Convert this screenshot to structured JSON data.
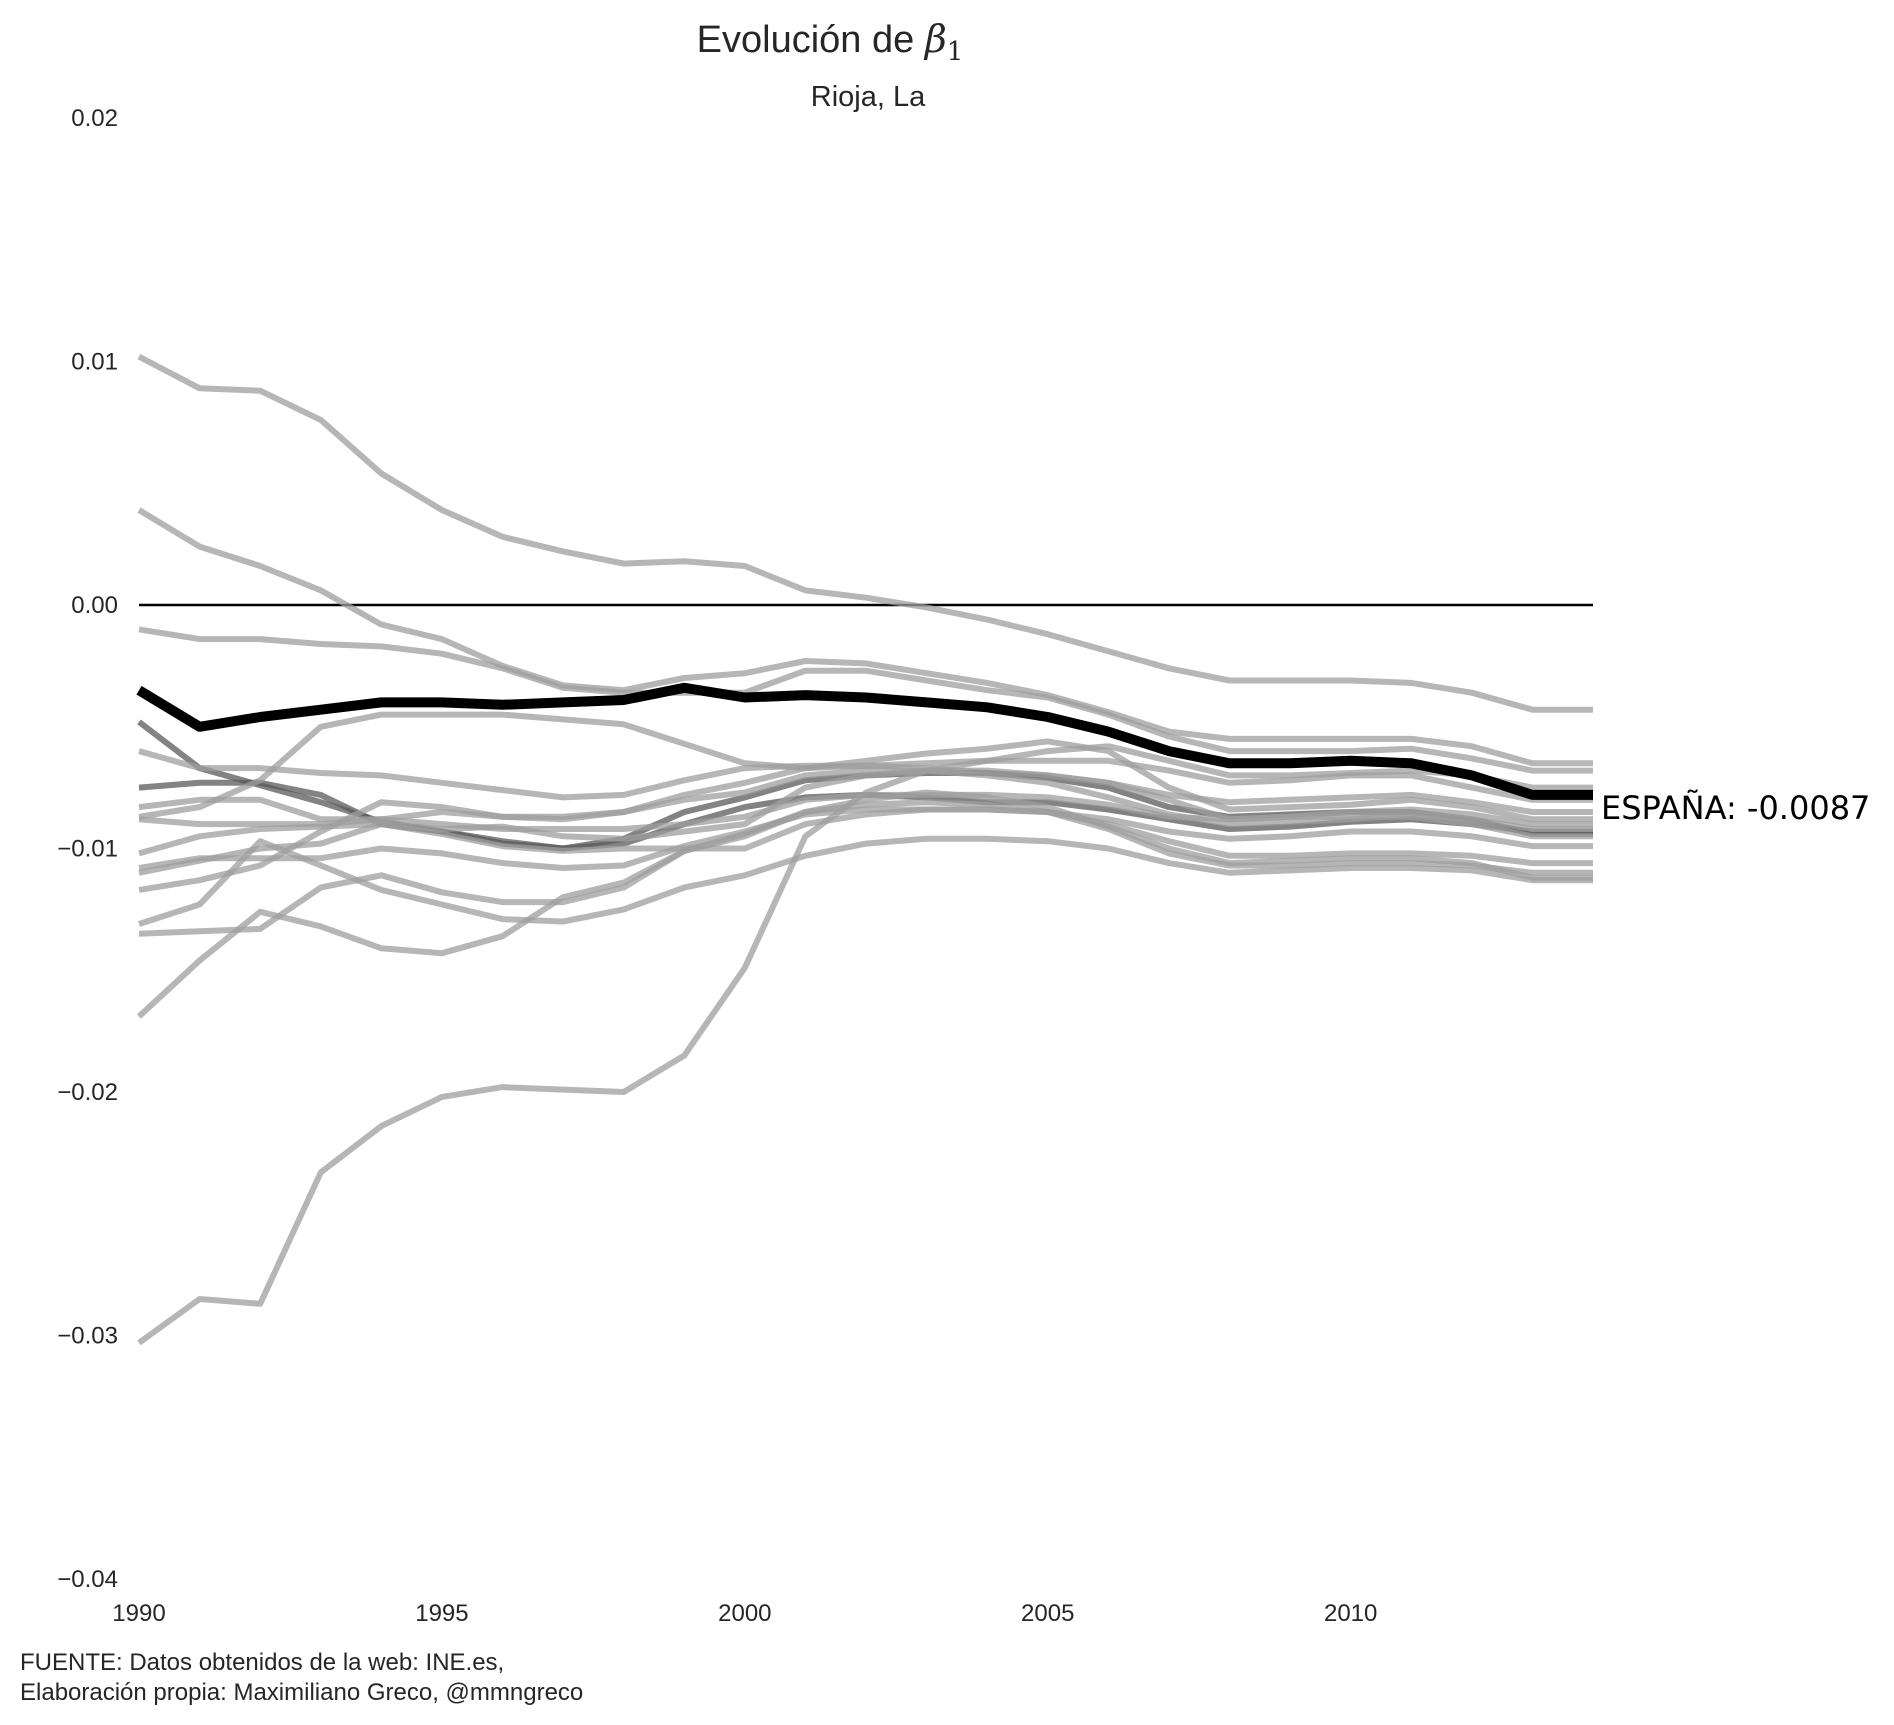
{
  "chart_data": {
    "type": "line",
    "title_prefix": "Evolución de ",
    "title_symbol": "β",
    "title_subscript": "1",
    "subtitle": "Rioja, La",
    "x_ticks": [
      1990,
      1995,
      2000,
      2005,
      2010
    ],
    "y_ticks": [
      "0.02",
      "0.01",
      "0.00",
      "−0.01",
      "−0.02",
      "−0.03",
      "−0.04"
    ],
    "y_tick_values": [
      0.02,
      0.01,
      0.0,
      -0.01,
      -0.02,
      -0.03,
      -0.04
    ],
    "xlim": [
      1990,
      2014
    ],
    "ylim": [
      -0.04,
      0.02
    ],
    "x": [
      1990,
      1991,
      1992,
      1993,
      1994,
      1995,
      1996,
      1997,
      1998,
      1999,
      2000,
      2001,
      2002,
      2003,
      2004,
      2005,
      2006,
      2007,
      2008,
      2009,
      2010,
      2011,
      2012,
      2013,
      2014
    ],
    "zero_line": 0.0,
    "grid": false,
    "colors": {
      "background_series": "#9e9e9e",
      "highlight": "#000000",
      "dark_series": "#5a5a5a"
    },
    "highlight": {
      "values": [
        -0.0035,
        -0.005,
        -0.0046,
        -0.0043,
        -0.004,
        -0.004,
        -0.0041,
        -0.004,
        -0.0039,
        -0.0034,
        -0.0038,
        -0.0037,
        -0.0038,
        -0.004,
        -0.0042,
        -0.0046,
        -0.0052,
        -0.006,
        -0.0065,
        -0.0065,
        -0.0064,
        -0.0065,
        -0.007,
        -0.0078,
        -0.0078
      ],
      "annotation": "ESPAÑA: -0.0087"
    },
    "series": [
      {
        "values": [
          0.0102,
          0.0089,
          0.0088,
          0.0076,
          0.0054,
          0.0039,
          0.0028,
          0.0022,
          0.0017,
          0.0018,
          0.0016,
          0.0006,
          0.0003,
          -0.0001,
          -0.0006,
          -0.0012,
          -0.0019,
          -0.0026,
          -0.0031,
          -0.0031,
          -0.0031,
          -0.0032,
          -0.0036,
          -0.0043,
          -0.0043
        ]
      },
      {
        "values": [
          0.0039,
          0.0024,
          0.0016,
          0.0006,
          -0.0008,
          -0.0014,
          -0.0025,
          -0.0033,
          -0.0035,
          -0.003,
          -0.0028,
          -0.0023,
          -0.0024,
          -0.0028,
          -0.0032,
          -0.0037,
          -0.0044,
          -0.0052,
          -0.0055,
          -0.0055,
          -0.0055,
          -0.0055,
          -0.0058,
          -0.0065,
          -0.0065
        ]
      },
      {
        "values": [
          -0.001,
          -0.0014,
          -0.0014,
          -0.0016,
          -0.0017,
          -0.002,
          -0.0026,
          -0.0034,
          -0.0036,
          -0.0036,
          -0.0036,
          -0.0027,
          -0.0027,
          -0.0031,
          -0.0035,
          -0.0038,
          -0.0045,
          -0.0054,
          -0.006,
          -0.006,
          -0.006,
          -0.0059,
          -0.0063,
          -0.0068,
          -0.0068
        ]
      },
      {
        "values": [
          -0.0048,
          -0.0067,
          -0.0074,
          -0.0081,
          -0.0089,
          -0.0093,
          -0.0097,
          -0.01,
          -0.0098,
          -0.009,
          -0.0083,
          -0.0079,
          -0.0078,
          -0.0079,
          -0.0081,
          -0.0081,
          -0.0084,
          -0.0088,
          -0.0092,
          -0.0091,
          -0.0089,
          -0.0088,
          -0.009,
          -0.0093,
          -0.0093
        ]
      },
      {
        "values": [
          -0.006,
          -0.0067,
          -0.0067,
          -0.0069,
          -0.007,
          -0.0073,
          -0.0076,
          -0.0079,
          -0.0078,
          -0.0072,
          -0.0067,
          -0.0066,
          -0.0066,
          -0.0067,
          -0.0069,
          -0.007,
          -0.0073,
          -0.0078,
          -0.0081,
          -0.008,
          -0.0079,
          -0.0078,
          -0.0081,
          -0.0085,
          -0.0085
        ]
      },
      {
        "values": [
          -0.0075,
          -0.0073,
          -0.0073,
          -0.0078,
          -0.009,
          -0.0093,
          -0.0098,
          -0.01,
          -0.0096,
          -0.0085,
          -0.0079,
          -0.0072,
          -0.007,
          -0.0069,
          -0.0069,
          -0.0071,
          -0.0075,
          -0.0083,
          -0.0087,
          -0.0086,
          -0.0085,
          -0.0085,
          -0.0088,
          -0.0094,
          -0.0094
        ]
      },
      {
        "values": [
          -0.0083,
          -0.008,
          -0.008,
          -0.0088,
          -0.0088,
          -0.0085,
          -0.0087,
          -0.0088,
          -0.0085,
          -0.008,
          -0.0077,
          -0.007,
          -0.0068,
          -0.0068,
          -0.007,
          -0.0073,
          -0.0079,
          -0.0086,
          -0.009,
          -0.0089,
          -0.0088,
          -0.0086,
          -0.0088,
          -0.0092,
          -0.0092
        ]
      },
      {
        "values": [
          -0.0088,
          -0.009,
          -0.009,
          -0.009,
          -0.0088,
          -0.009,
          -0.0092,
          -0.0092,
          -0.0092,
          -0.009,
          -0.0087,
          -0.008,
          -0.0078,
          -0.0078,
          -0.0078,
          -0.0079,
          -0.0082,
          -0.0087,
          -0.0088,
          -0.0087,
          -0.0085,
          -0.0084,
          -0.0086,
          -0.009,
          -0.009
        ]
      },
      {
        "values": [
          -0.0087,
          -0.0083,
          -0.0072,
          -0.005,
          -0.0045,
          -0.0045,
          -0.0045,
          -0.0047,
          -0.0049,
          -0.0057,
          -0.0065,
          -0.0067,
          -0.0066,
          -0.0065,
          -0.0064,
          -0.0064,
          -0.0064,
          -0.0068,
          -0.0073,
          -0.0072,
          -0.007,
          -0.007,
          -0.0075,
          -0.008,
          -0.008
        ]
      },
      {
        "values": [
          -0.0102,
          -0.0095,
          -0.0092,
          -0.0091,
          -0.009,
          -0.0092,
          -0.0091,
          -0.0095,
          -0.0096,
          -0.0093,
          -0.009,
          -0.0075,
          -0.007,
          -0.0068,
          -0.0068,
          -0.007,
          -0.0073,
          -0.008,
          -0.0088,
          -0.0087,
          -0.0087,
          -0.0087,
          -0.009,
          -0.0095,
          -0.0095
        ]
      },
      {
        "values": [
          -0.0108,
          -0.0104,
          -0.0104,
          -0.0104,
          -0.01,
          -0.0102,
          -0.0106,
          -0.0108,
          -0.0107,
          -0.0099,
          -0.0093,
          -0.0086,
          -0.0084,
          -0.0084,
          -0.0084,
          -0.0085,
          -0.0088,
          -0.0093,
          -0.0096,
          -0.0095,
          -0.0093,
          -0.0093,
          -0.0095,
          -0.0099,
          -0.0099
        ]
      },
      {
        "values": [
          -0.011,
          -0.0105,
          -0.01,
          -0.0098,
          -0.009,
          -0.0094,
          -0.0099,
          -0.0101,
          -0.01,
          -0.01,
          -0.01,
          -0.009,
          -0.0086,
          -0.0084,
          -0.0084,
          -0.0085,
          -0.009,
          -0.0097,
          -0.0103,
          -0.0103,
          -0.0102,
          -0.0102,
          -0.0103,
          -0.0106,
          -0.0106
        ]
      },
      {
        "values": [
          -0.0117,
          -0.0113,
          -0.0107,
          -0.0093,
          -0.0081,
          -0.0083,
          -0.0087,
          -0.0087,
          -0.0085,
          -0.0078,
          -0.0073,
          -0.0067,
          -0.0064,
          -0.0061,
          -0.0059,
          -0.0056,
          -0.006,
          -0.0075,
          -0.0084,
          -0.0083,
          -0.0082,
          -0.008,
          -0.0083,
          -0.0088,
          -0.0088
        ]
      },
      {
        "values": [
          -0.0131,
          -0.0123,
          -0.0097,
          -0.0107,
          -0.0117,
          -0.0123,
          -0.0129,
          -0.013,
          -0.0125,
          -0.0116,
          -0.0111,
          -0.0103,
          -0.0098,
          -0.0096,
          -0.0096,
          -0.0097,
          -0.01,
          -0.0106,
          -0.011,
          -0.0109,
          -0.0108,
          -0.0108,
          -0.0109,
          -0.0113,
          -0.0113
        ]
      },
      {
        "values": [
          -0.0135,
          -0.0134,
          -0.0133,
          -0.0116,
          -0.0111,
          -0.0118,
          -0.0122,
          -0.0122,
          -0.0116,
          -0.0101,
          -0.0094,
          -0.0085,
          -0.0082,
          -0.0081,
          -0.0082,
          -0.0085,
          -0.0092,
          -0.0102,
          -0.0107,
          -0.0107,
          -0.0106,
          -0.0106,
          -0.0107,
          -0.011,
          -0.011
        ]
      },
      {
        "values": [
          -0.0169,
          -0.0146,
          -0.0126,
          -0.0132,
          -0.0141,
          -0.0143,
          -0.0136,
          -0.012,
          -0.0114,
          -0.0101,
          -0.0095,
          -0.0085,
          -0.008,
          -0.0077,
          -0.0079,
          -0.0083,
          -0.0091,
          -0.01,
          -0.0106,
          -0.0105,
          -0.0104,
          -0.0104,
          -0.0106,
          -0.0112,
          -0.0112
        ]
      },
      {
        "values": [
          -0.0303,
          -0.0285,
          -0.0287,
          -0.0233,
          -0.0214,
          -0.0202,
          -0.0198,
          -0.0199,
          -0.02,
          -0.0185,
          -0.0149,
          -0.0095,
          -0.0077,
          -0.0068,
          -0.0064,
          -0.006,
          -0.0058,
          -0.0064,
          -0.007,
          -0.007,
          -0.0069,
          -0.0068,
          -0.007,
          -0.0075,
          -0.0075
        ]
      }
    ],
    "dark_series_indices": [
      3,
      5
    ]
  },
  "footer": {
    "line1": "FUENTE: Datos obtenidos de la web: INE.es,",
    "line2": "Elaboración propia: Maximiliano Greco, @mmngreco"
  }
}
